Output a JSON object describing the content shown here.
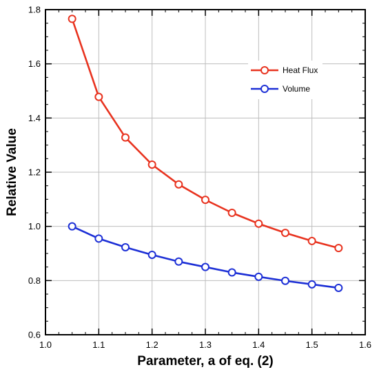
{
  "chart_data": {
    "type": "line",
    "title": "",
    "xlabel": "Parameter, a of eq. (2)",
    "ylabel": "Relative Value",
    "xlim": [
      1.0,
      1.6
    ],
    "ylim": [
      0.6,
      1.8
    ],
    "xticks": [
      "1.0",
      "1.1",
      "1.2",
      "1.3",
      "1.4",
      "1.5",
      "1.6"
    ],
    "yticks": [
      "0.6",
      "0.8",
      "1.0",
      "1.2",
      "1.4",
      "1.6",
      "1.8"
    ],
    "grid": true,
    "legend_position": "top-right",
    "x": [
      1.05,
      1.1,
      1.15,
      1.2,
      1.25,
      1.3,
      1.35,
      1.4,
      1.45,
      1.5,
      1.55
    ],
    "series": [
      {
        "name": "Heat Flux",
        "color": "#e8321e",
        "values": [
          1.766,
          1.478,
          1.328,
          1.228,
          1.155,
          1.098,
          1.05,
          1.01,
          0.976,
          0.946,
          0.92
        ]
      },
      {
        "name": "Volume",
        "color": "#1c2fd6",
        "values": [
          1.0,
          0.955,
          0.923,
          0.895,
          0.87,
          0.85,
          0.83,
          0.814,
          0.799,
          0.786,
          0.773
        ]
      }
    ]
  }
}
